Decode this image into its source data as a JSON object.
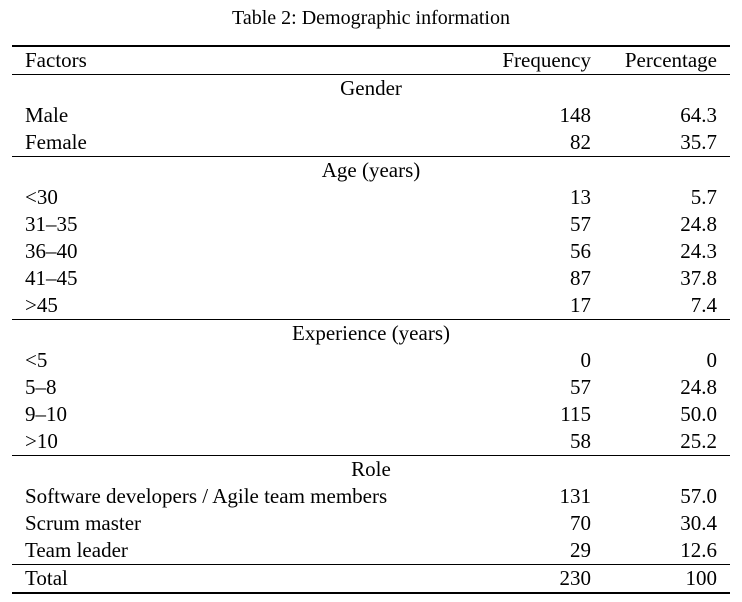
{
  "colors": {
    "text": "#000000",
    "background": "#ffffff",
    "rule": "#000000"
  },
  "caption": "Table 2: Demographic information",
  "table": {
    "headers": [
      "Factors",
      "Frequency",
      "Percentage"
    ],
    "sections": [
      {
        "label": "Gender",
        "rows": [
          [
            "Male",
            "148",
            "64.3"
          ],
          [
            "Female",
            "82",
            "35.7"
          ]
        ]
      },
      {
        "label": "Age (years)",
        "rows": [
          [
            "<30",
            "13",
            "5.7"
          ],
          [
            "31–35",
            "57",
            "24.8"
          ],
          [
            "36–40",
            "56",
            "24.3"
          ],
          [
            "41–45",
            "87",
            "37.8"
          ],
          [
            ">45",
            "17",
            "7.4"
          ]
        ]
      },
      {
        "label": "Experience (years)",
        "rows": [
          [
            "<5",
            "0",
            "0"
          ],
          [
            "5–8",
            "57",
            "24.8"
          ],
          [
            "9–10",
            "115",
            "50.0"
          ],
          [
            ">10",
            "58",
            "25.2"
          ]
        ]
      },
      {
        "label": "Role",
        "rows": [
          [
            "Software developers / Agile team members",
            "131",
            "57.0"
          ],
          [
            "Scrum master",
            "70",
            "30.4"
          ],
          [
            "Team leader",
            "29",
            "12.6"
          ]
        ]
      }
    ],
    "total": [
      "Total",
      "230",
      "100"
    ]
  }
}
